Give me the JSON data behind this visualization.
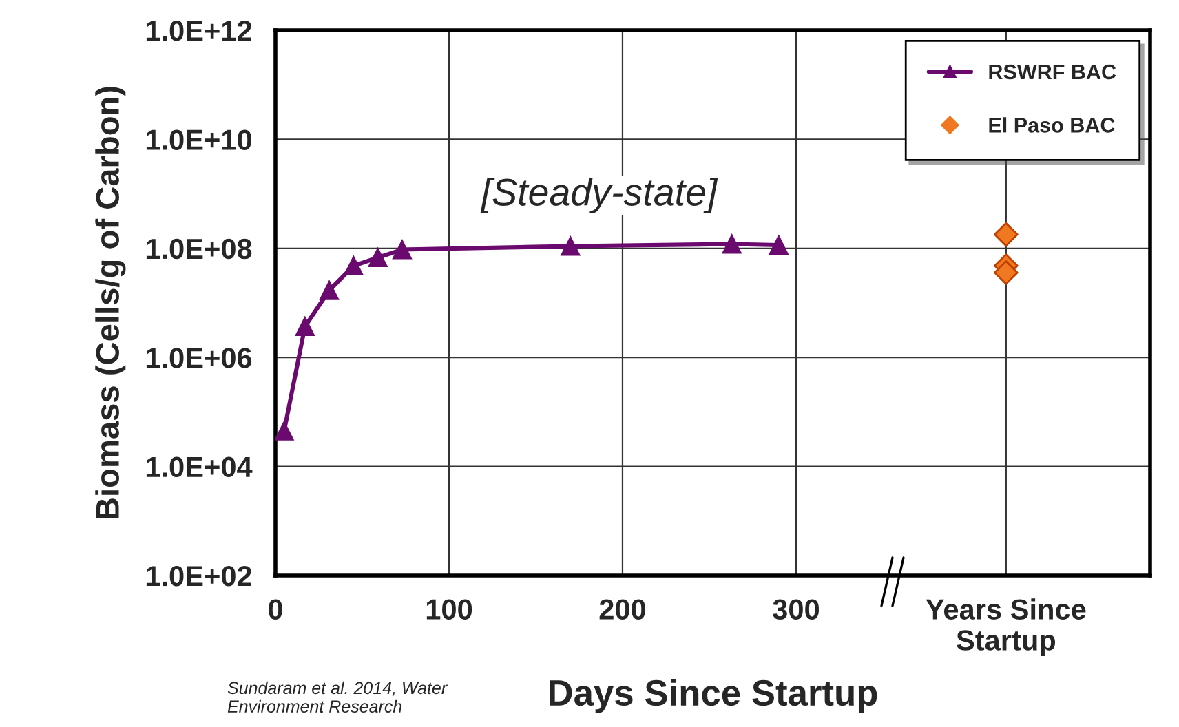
{
  "chart_data": {
    "type": "line",
    "xlabel": "Days Since Startup",
    "ylabel": "Biomass (Cells/g of Carbon)",
    "series": [
      {
        "name": "RSWRF BAC",
        "color": "#6a0a6e",
        "marker": "triangle",
        "x": [
          5,
          17,
          31,
          45,
          59,
          73,
          170,
          263,
          290
        ],
        "values": [
          45000,
          3700000,
          17000000,
          48000000,
          68000000,
          95000000,
          110000000,
          120000000,
          115000000
        ]
      },
      {
        "name": "El Paso BAC",
        "type": "scatter",
        "color": "#f07820",
        "marker": "diamond",
        "x": [
          421,
          421,
          421
        ],
        "values": [
          180000000,
          48000000,
          36000000
        ]
      }
    ],
    "log": "y",
    "xlim": [
      0,
      504
    ],
    "ylim": [
      100,
      1000000000000
    ],
    "xticks": [
      0,
      100,
      200,
      300,
      {
        "value": 421,
        "label": "Years Since\nStartup"
      }
    ],
    "yticks": [
      {
        "value": 100,
        "label": "1.0E+02"
      },
      {
        "value": 10000,
        "label": "1.0E+04"
      },
      {
        "value": 1000000,
        "label": "1.0E+06"
      },
      {
        "value": 100000000,
        "label": "1.0E+08"
      },
      {
        "value": 10000000000,
        "label": "1.0E+10"
      },
      {
        "value": 1000000000000,
        "label": "1.0E+12"
      }
    ],
    "grid": true,
    "legend": "top right",
    "annotations": [
      "[Steady-state]",
      "Sundaram et al. 2014, Water\nEnvironment Research"
    ]
  }
}
